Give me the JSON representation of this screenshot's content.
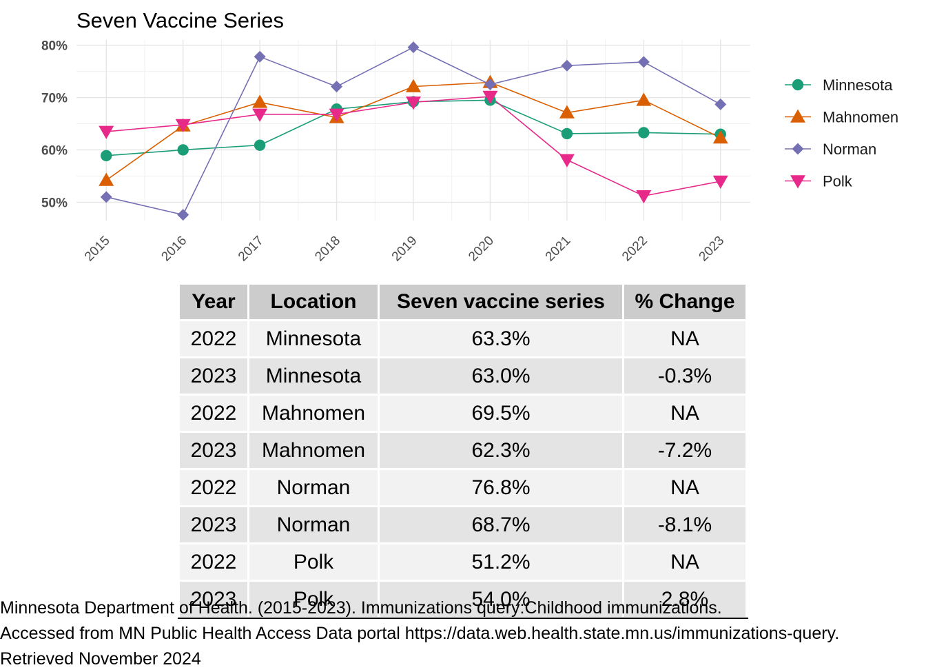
{
  "chart_data": {
    "type": "line",
    "title": "Seven Vaccine Series",
    "xlabel": "",
    "ylabel": "",
    "x": [
      2015,
      2016,
      2017,
      2018,
      2019,
      2020,
      2021,
      2022,
      2023
    ],
    "x_tick_labels": [
      "2015",
      "2016",
      "2017",
      "2018",
      "2019",
      "2020",
      "2021",
      "2022",
      "2023"
    ],
    "y_ticks": [
      50,
      60,
      70,
      80
    ],
    "y_tick_labels": [
      "50%",
      "60%",
      "70%",
      "80%"
    ],
    "ylim": [
      46.5,
      81
    ],
    "grid": true,
    "legend_position": "right",
    "series": [
      {
        "name": "Minnesota",
        "color": "#1b9e77",
        "marker": "circle",
        "values": [
          58.9,
          60.0,
          60.9,
          67.8,
          69.2,
          69.5,
          63.1,
          63.3,
          63.0
        ]
      },
      {
        "name": "Mahnomen",
        "color": "#d95f02",
        "marker": "triangle-up",
        "values": [
          54.2,
          64.6,
          69.1,
          66.2,
          72.1,
          72.9,
          67.1,
          69.5,
          62.3
        ]
      },
      {
        "name": "Norman",
        "color": "#7570b3",
        "marker": "diamond",
        "values": [
          51.0,
          47.6,
          77.8,
          72.1,
          79.6,
          72.5,
          76.1,
          76.8,
          68.7
        ]
      },
      {
        "name": "Polk",
        "color": "#e7298a",
        "marker": "triangle-down",
        "values": [
          63.5,
          64.8,
          66.8,
          66.8,
          69.1,
          70.2,
          58.1,
          51.2,
          54.0
        ]
      }
    ]
  },
  "table": {
    "headers": [
      "Year",
      "Location",
      "Seven vaccine series",
      "% Change"
    ],
    "rows": [
      [
        "2022",
        "Minnesota",
        "63.3%",
        "NA"
      ],
      [
        "2023",
        "Minnesota",
        "63.0%",
        "-0.3%"
      ],
      [
        "2022",
        "Mahnomen",
        "69.5%",
        "NA"
      ],
      [
        "2023",
        "Mahnomen",
        "62.3%",
        "-7.2%"
      ],
      [
        "2022",
        "Norman",
        "76.8%",
        "NA"
      ],
      [
        "2023",
        "Norman",
        "68.7%",
        "-8.1%"
      ],
      [
        "2022",
        "Polk",
        "51.2%",
        "NA"
      ],
      [
        "2023",
        "Polk",
        "54.0%",
        "2.8%"
      ]
    ]
  },
  "source": {
    "line1": "Minnesota Department of Health. (2015-2023). Immunizations query:Childhood immunizations.",
    "line2": "Accessed from MN Public Health Access Data portal https://data.web.health.state.mn.us/immunizations-query.",
    "line3": "Retrieved November 2024"
  }
}
